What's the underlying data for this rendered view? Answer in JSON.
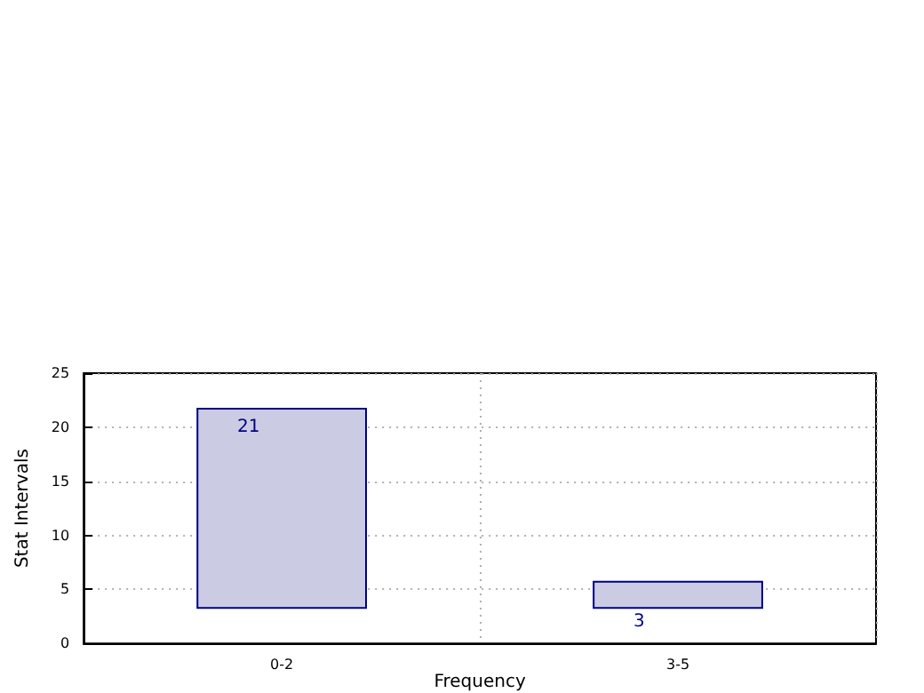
{
  "chart_data": {
    "type": "bar",
    "xlabel": "Frequency",
    "ylabel": "Stat Intervals",
    "categories": [
      "0-2",
      "3-5"
    ],
    "base": [
      3.2,
      3.2
    ],
    "values": [
      18.6,
      2.6
    ],
    "color": "#cbcbe3",
    "ylim": [
      0,
      25
    ],
    "yticks": [
      0,
      5,
      10,
      15,
      20,
      25
    ],
    "grid": true,
    "annotations": [
      {
        "text": "21",
        "x": "0-2",
        "y": 21
      },
      {
        "text": "3",
        "x": "3-5",
        "y": 3
      }
    ]
  }
}
